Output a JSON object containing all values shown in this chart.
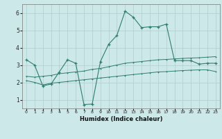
{
  "xlabel": "Humidex (Indice chaleur)",
  "background_color": "#cce8e8",
  "grid_color": "#b0cccc",
  "line_color": "#2e7d6e",
  "xlim": [
    -0.5,
    23.5
  ],
  "ylim": [
    0.5,
    6.5
  ],
  "yticks": [
    1,
    2,
    3,
    4,
    5,
    6
  ],
  "xticks": [
    0,
    1,
    2,
    3,
    4,
    5,
    6,
    7,
    8,
    9,
    10,
    11,
    12,
    13,
    14,
    15,
    16,
    17,
    18,
    19,
    20,
    21,
    22,
    23
  ],
  "main_line_x": [
    0,
    1,
    2,
    3,
    4,
    5,
    6,
    7,
    8,
    9,
    10,
    11,
    12,
    13,
    14,
    15,
    16,
    17,
    18,
    19,
    20,
    21,
    22,
    23
  ],
  "main_line_y": [
    3.3,
    3.0,
    1.8,
    1.9,
    2.6,
    3.3,
    3.1,
    0.72,
    0.75,
    3.2,
    4.2,
    4.7,
    6.1,
    5.75,
    5.15,
    5.2,
    5.2,
    5.35,
    3.25,
    3.25,
    3.25,
    3.05,
    3.1,
    3.1
  ],
  "lower_line_x": [
    0,
    1,
    2,
    3,
    4,
    5,
    6,
    7,
    8,
    9,
    10,
    11,
    12,
    13,
    14,
    15,
    16,
    17,
    18,
    19,
    20,
    21,
    22,
    23
  ],
  "lower_line_y": [
    2.1,
    2.0,
    1.85,
    1.95,
    2.0,
    2.05,
    2.1,
    2.15,
    2.2,
    2.25,
    2.3,
    2.35,
    2.4,
    2.45,
    2.5,
    2.55,
    2.6,
    2.62,
    2.65,
    2.68,
    2.7,
    2.72,
    2.72,
    2.62
  ],
  "upper_line_x": [
    0,
    1,
    2,
    3,
    4,
    5,
    6,
    7,
    8,
    9,
    10,
    11,
    12,
    13,
    14,
    15,
    16,
    17,
    18,
    19,
    20,
    21,
    22,
    23
  ],
  "upper_line_y": [
    2.35,
    2.3,
    2.35,
    2.4,
    2.5,
    2.55,
    2.6,
    2.65,
    2.75,
    2.8,
    2.9,
    3.0,
    3.1,
    3.15,
    3.2,
    3.25,
    3.3,
    3.32,
    3.35,
    3.38,
    3.4,
    3.42,
    3.45,
    3.48
  ]
}
